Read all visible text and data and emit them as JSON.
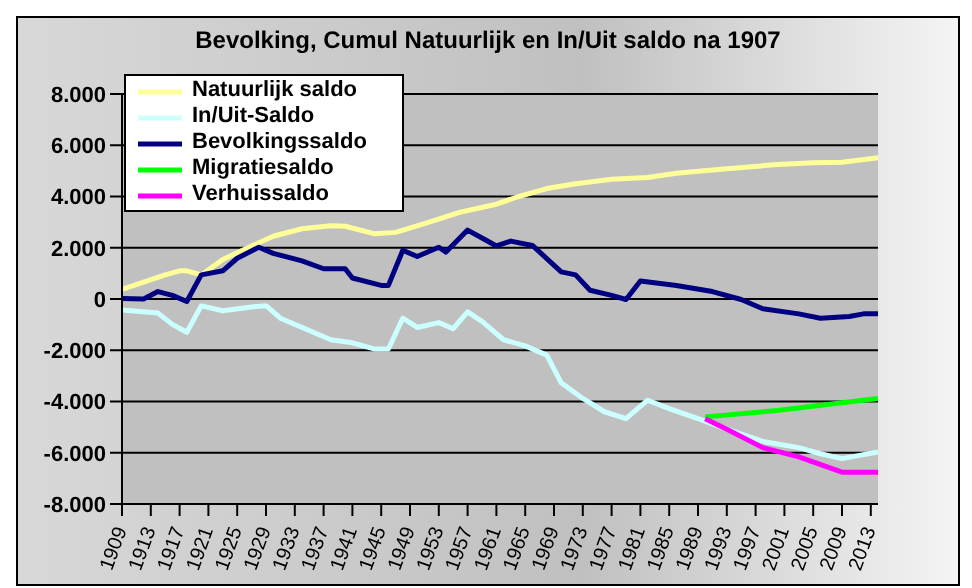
{
  "chart_data": {
    "type": "line",
    "title": "Bevolking, Cumul Natuurlijk en In/Uit saldo na 1907",
    "xlim": [
      1909,
      2014
    ],
    "xticks": [
      1909,
      1913,
      1917,
      1921,
      1925,
      1929,
      1933,
      1937,
      1941,
      1945,
      1949,
      1953,
      1957,
      1961,
      1965,
      1969,
      1973,
      1977,
      1981,
      1985,
      1989,
      1993,
      1997,
      2001,
      2005,
      2009,
      2013
    ],
    "ylim": [
      -8000,
      8000
    ],
    "yticks": [
      {
        "value": -8000,
        "label": "-8.000"
      },
      {
        "value": -6000,
        "label": "-6.000"
      },
      {
        "value": -4000,
        "label": "-4.000"
      },
      {
        "value": -2000,
        "label": "-2.000"
      },
      0,
      {
        "value": 2000,
        "label": "2.000"
      },
      {
        "value": 4000,
        "label": "4.000"
      },
      {
        "value": 6000,
        "label": "6.000"
      },
      {
        "value": 8000,
        "label": "8.000"
      }
    ],
    "grid": "y",
    "legend": "top left",
    "marker": "none",
    "line_style": "solid",
    "series": [
      {
        "name": "Natuurlijk saldo",
        "color": "#ffff99",
        "x": [
          1909,
          1915,
          1917,
          1918,
          1920,
          1923,
          1927,
          1930,
          1934,
          1938,
          1940,
          1944,
          1947,
          1951,
          1956,
          1961,
          1964,
          1968,
          1972,
          1977,
          1982,
          1986,
          1991,
          1996,
          2000,
          2005,
          2009,
          2014
        ],
        "values": [
          380,
          940,
          1100,
          1100,
          940,
          1540,
          2070,
          2450,
          2740,
          2860,
          2840,
          2550,
          2600,
          2940,
          3390,
          3700,
          3990,
          4310,
          4500,
          4670,
          4740,
          4910,
          5030,
          5150,
          5250,
          5320,
          5340,
          5510
        ]
      },
      {
        "name": "In/Uit-Saldo",
        "color": "#ccffff",
        "x": [
          1909,
          1914,
          1916,
          1918,
          1920,
          1923,
          1927,
          1929,
          1931,
          1935,
          1938,
          1941,
          1944,
          1946,
          1948,
          1950,
          1953,
          1955,
          1957,
          1959,
          1962,
          1965,
          1968,
          1970,
          1973,
          1976,
          1979,
          1982,
          1985,
          1989,
          1993,
          1998,
          2003,
          2006,
          2009,
          2014
        ],
        "values": [
          -430,
          -550,
          -990,
          -1300,
          -270,
          -460,
          -310,
          -260,
          -750,
          -1230,
          -1590,
          -1710,
          -1950,
          -1950,
          -750,
          -1110,
          -920,
          -1160,
          -500,
          -870,
          -1590,
          -1830,
          -2190,
          -3270,
          -3880,
          -4400,
          -4670,
          -3950,
          -4280,
          -4670,
          -5080,
          -5560,
          -5800,
          -6040,
          -6230,
          -5970
        ]
      },
      {
        "name": "Bevolkingssaldo",
        "color": "#000080",
        "x": [
          1909,
          1912,
          1914,
          1916,
          1918,
          1920,
          1923,
          1925,
          1928,
          1930,
          1934,
          1937,
          1940,
          1941,
          1945,
          1946,
          1948,
          1950,
          1953,
          1954,
          1957,
          1959,
          1961,
          1963,
          1966,
          1970,
          1972,
          1974,
          1977,
          1979,
          1981,
          1986,
          1991,
          1995,
          1998,
          2003,
          2006,
          2010,
          2012,
          2014
        ],
        "values": [
          20,
          0,
          290,
          140,
          -100,
          940,
          1100,
          1590,
          2020,
          1780,
          1490,
          1180,
          1180,
          820,
          530,
          530,
          1900,
          1660,
          2020,
          1830,
          2690,
          2380,
          2070,
          2260,
          2090,
          1060,
          940,
          340,
          140,
          -20,
          700,
          530,
          290,
          -20,
          -380,
          -580,
          -750,
          -680,
          -580,
          -580
        ]
      },
      {
        "name": "Migratiesaldo",
        "color": "#00ff00",
        "x": [
          1990,
          2000,
          2014
        ],
        "values": [
          -4600,
          -4350,
          -3880
        ]
      },
      {
        "name": "Verhuissaldo",
        "color": "#ff00ff",
        "x": [
          1990,
          1993,
          1998,
          2003,
          2009,
          2014
        ],
        "values": [
          -4670,
          -5080,
          -5800,
          -6160,
          -6760,
          -6760
        ]
      }
    ]
  }
}
